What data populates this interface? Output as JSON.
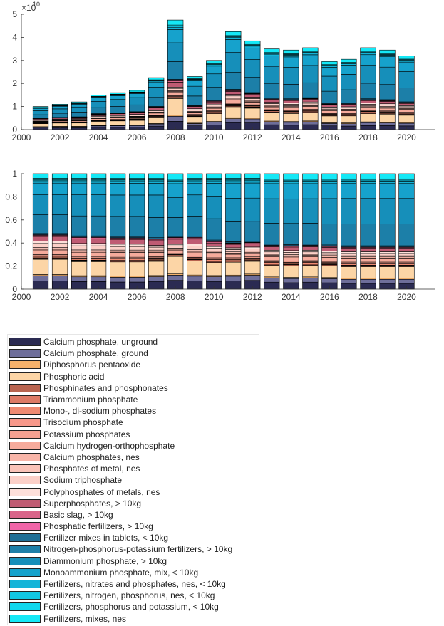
{
  "chart_data": [
    {
      "type": "stacked-bar",
      "panel": "top",
      "title": "",
      "xlabel": "",
      "ylabel": "",
      "y_multiplier_label": "×10",
      "y_multiplier_exponent": "10",
      "ylim": [
        0,
        5
      ],
      "yticks": [
        0,
        1,
        2,
        3,
        4,
        5
      ],
      "xlim": [
        2000,
        2021.5
      ],
      "xticks": [
        2000,
        2002,
        2004,
        2006,
        2008,
        2010,
        2012,
        2014,
        2016,
        2018,
        2020
      ],
      "grid": false
    },
    {
      "type": "stacked-bar",
      "panel": "bottom",
      "title": "",
      "xlabel": "",
      "ylabel": "",
      "ylim": [
        0,
        1
      ],
      "yticks": [
        0,
        0.2,
        0.4,
        0.6,
        0.8,
        1
      ],
      "xlim": [
        2000,
        2021.5
      ],
      "xticks": [
        2000,
        2002,
        2004,
        2006,
        2008,
        2010,
        2012,
        2014,
        2016,
        2018,
        2020
      ],
      "grid": false
    }
  ],
  "years": [
    2001,
    2002,
    2003,
    2004,
    2005,
    2006,
    2007,
    2008,
    2009,
    2010,
    2011,
    2012,
    2013,
    2014,
    2015,
    2016,
    2017,
    2018,
    2019,
    2020
  ],
  "totals_x1e10": [
    1.0,
    1.1,
    1.2,
    1.5,
    1.6,
    1.7,
    2.25,
    4.75,
    2.3,
    3.0,
    4.25,
    3.85,
    3.5,
    3.45,
    3.55,
    2.95,
    3.05,
    3.55,
    3.45,
    3.2
  ],
  "series": [
    {
      "name": "Calcium phosphate, unground",
      "color": "#2b2b52",
      "shares": [
        0.07,
        0.07,
        0.065,
        0.065,
        0.06,
        0.06,
        0.065,
        0.075,
        0.07,
        0.065,
        0.07,
        0.075,
        0.06,
        0.055,
        0.06,
        0.055,
        0.05,
        0.05,
        0.05,
        0.05
      ]
    },
    {
      "name": "Calcium phosphate, ground",
      "color": "#6e6e9a",
      "shares": [
        0.045,
        0.045,
        0.04,
        0.04,
        0.04,
        0.04,
        0.04,
        0.045,
        0.04,
        0.04,
        0.04,
        0.045,
        0.035,
        0.035,
        0.035,
        0.035,
        0.035,
        0.035,
        0.035,
        0.035
      ]
    },
    {
      "name": "Diphosphorus pentaoxide",
      "color": "#f6b26b",
      "shares": [
        0.01,
        0.01,
        0.01,
        0.01,
        0.01,
        0.01,
        0.01,
        0.01,
        0.01,
        0.01,
        0.01,
        0.01,
        0.01,
        0.01,
        0.01,
        0.01,
        0.01,
        0.01,
        0.01,
        0.01
      ]
    },
    {
      "name": "Phosphoric acid",
      "color": "#fcd5a6",
      "shares": [
        0.13,
        0.13,
        0.12,
        0.12,
        0.12,
        0.12,
        0.12,
        0.15,
        0.12,
        0.11,
        0.11,
        0.11,
        0.1,
        0.1,
        0.1,
        0.1,
        0.1,
        0.1,
        0.1,
        0.1
      ]
    },
    {
      "name": "Phosphinates and phosphonates",
      "color": "#b86450",
      "shares": [
        0.01,
        0.01,
        0.01,
        0.01,
        0.01,
        0.01,
        0.01,
        0.005,
        0.01,
        0.01,
        0.01,
        0.01,
        0.01,
        0.01,
        0.01,
        0.01,
        0.01,
        0.01,
        0.01,
        0.01
      ]
    },
    {
      "name": "Triammonium phosphate",
      "color": "#dd7a66",
      "shares": [
        0.003,
        0.003,
        0.003,
        0.003,
        0.003,
        0.003,
        0.003,
        0.002,
        0.003,
        0.003,
        0.003,
        0.003,
        0.003,
        0.003,
        0.003,
        0.003,
        0.003,
        0.003,
        0.003,
        0.003
      ]
    },
    {
      "name": "Mono-, di-sodium phosphates",
      "color": "#ef8a72",
      "shares": [
        0.012,
        0.012,
        0.012,
        0.012,
        0.012,
        0.012,
        0.012,
        0.008,
        0.012,
        0.012,
        0.01,
        0.01,
        0.012,
        0.012,
        0.012,
        0.012,
        0.012,
        0.012,
        0.012,
        0.012
      ]
    },
    {
      "name": "Trisodium phosphate",
      "color": "#f7988a",
      "shares": [
        0.005,
        0.005,
        0.005,
        0.005,
        0.005,
        0.005,
        0.005,
        0.003,
        0.005,
        0.005,
        0.005,
        0.005,
        0.005,
        0.005,
        0.005,
        0.005,
        0.005,
        0.005,
        0.005,
        0.005
      ]
    },
    {
      "name": "Potassium phosphates",
      "color": "#f4a090",
      "shares": [
        0.01,
        0.01,
        0.01,
        0.01,
        0.01,
        0.01,
        0.01,
        0.007,
        0.01,
        0.01,
        0.01,
        0.01,
        0.01,
        0.01,
        0.01,
        0.01,
        0.01,
        0.01,
        0.01,
        0.01
      ]
    },
    {
      "name": "Calcium hydrogen-orthophosphate",
      "color": "#f6ab9c",
      "shares": [
        0.04,
        0.04,
        0.04,
        0.04,
        0.04,
        0.04,
        0.035,
        0.03,
        0.035,
        0.035,
        0.03,
        0.03,
        0.035,
        0.035,
        0.035,
        0.035,
        0.035,
        0.035,
        0.035,
        0.035
      ]
    },
    {
      "name": "Calcium phosphates, nes",
      "color": "#f8b5a8",
      "shares": [
        0.01,
        0.01,
        0.01,
        0.01,
        0.01,
        0.01,
        0.01,
        0.008,
        0.01,
        0.01,
        0.01,
        0.01,
        0.01,
        0.01,
        0.01,
        0.01,
        0.01,
        0.01,
        0.01,
        0.01
      ]
    },
    {
      "name": "Phosphates of metal, nes",
      "color": "#fac3b8",
      "shares": [
        0.01,
        0.01,
        0.01,
        0.01,
        0.01,
        0.01,
        0.01,
        0.008,
        0.01,
        0.01,
        0.01,
        0.01,
        0.01,
        0.01,
        0.01,
        0.01,
        0.01,
        0.01,
        0.01,
        0.01
      ]
    },
    {
      "name": "Sodium triphosphate",
      "color": "#fcd0c8",
      "shares": [
        0.035,
        0.035,
        0.035,
        0.035,
        0.03,
        0.03,
        0.025,
        0.02,
        0.03,
        0.025,
        0.02,
        0.02,
        0.02,
        0.02,
        0.02,
        0.02,
        0.02,
        0.02,
        0.02,
        0.02
      ]
    },
    {
      "name": "Polyphosphates of metals, nes",
      "color": "#fde0da",
      "shares": [
        0.02,
        0.02,
        0.02,
        0.02,
        0.02,
        0.02,
        0.015,
        0.012,
        0.02,
        0.015,
        0.015,
        0.015,
        0.015,
        0.015,
        0.015,
        0.015,
        0.015,
        0.015,
        0.015,
        0.015
      ]
    },
    {
      "name": "Superphosphates, > 10kg",
      "color": "#bf5b73",
      "shares": [
        0.04,
        0.04,
        0.04,
        0.04,
        0.04,
        0.04,
        0.04,
        0.045,
        0.04,
        0.03,
        0.03,
        0.03,
        0.03,
        0.03,
        0.03,
        0.03,
        0.03,
        0.03,
        0.03,
        0.03
      ]
    },
    {
      "name": "Basic slag, > 10kg",
      "color": "#d9658a",
      "shares": [
        0.01,
        0.01,
        0.01,
        0.01,
        0.01,
        0.01,
        0.01,
        0.012,
        0.01,
        0.01,
        0.008,
        0.008,
        0.008,
        0.008,
        0.008,
        0.008,
        0.008,
        0.008,
        0.008,
        0.008
      ]
    },
    {
      "name": "Phosphatic fertilizers, > 10kg",
      "color": "#f065a8",
      "shares": [
        0.005,
        0.005,
        0.005,
        0.005,
        0.005,
        0.005,
        0.005,
        0.005,
        0.005,
        0.005,
        0.004,
        0.004,
        0.004,
        0.004,
        0.004,
        0.004,
        0.004,
        0.004,
        0.004,
        0.004
      ]
    },
    {
      "name": "Fertilizer mixes in tablets, < 10kg",
      "color": "#1f6f96",
      "shares": [
        0.01,
        0.01,
        0.01,
        0.01,
        0.01,
        0.01,
        0.01,
        0.008,
        0.01,
        0.01,
        0.01,
        0.01,
        0.01,
        0.01,
        0.01,
        0.01,
        0.01,
        0.01,
        0.01,
        0.01
      ]
    },
    {
      "name": "Nitrogen-phosphorus-potassium fertilizers, > 10kg",
      "color": "#1c7fa8",
      "shares": [
        0.16,
        0.16,
        0.17,
        0.17,
        0.17,
        0.17,
        0.17,
        0.16,
        0.17,
        0.18,
        0.17,
        0.17,
        0.18,
        0.18,
        0.18,
        0.18,
        0.19,
        0.19,
        0.19,
        0.19
      ]
    },
    {
      "name": "Diammonium phosphate, > 10kg",
      "color": "#168fba",
      "shares": [
        0.17,
        0.17,
        0.18,
        0.18,
        0.18,
        0.18,
        0.19,
        0.17,
        0.18,
        0.19,
        0.2,
        0.2,
        0.21,
        0.21,
        0.21,
        0.22,
        0.22,
        0.22,
        0.22,
        0.22
      ]
    },
    {
      "name": "Monoammonium phosphate, mix, < 10kg",
      "color": "#16a2cc",
      "shares": [
        0.1,
        0.1,
        0.1,
        0.1,
        0.1,
        0.1,
        0.1,
        0.12,
        0.1,
        0.11,
        0.13,
        0.13,
        0.13,
        0.13,
        0.13,
        0.13,
        0.13,
        0.13,
        0.13,
        0.13
      ]
    },
    {
      "name": "Fertilizers, nitrates and phosphates, nes, < 10kg",
      "color": "#14b4d8",
      "shares": [
        0.02,
        0.02,
        0.02,
        0.02,
        0.02,
        0.02,
        0.02,
        0.02,
        0.02,
        0.02,
        0.02,
        0.02,
        0.02,
        0.02,
        0.02,
        0.02,
        0.02,
        0.02,
        0.02,
        0.02
      ]
    },
    {
      "name": "Fertilizers, nitrogen, phosphorus, nes, < 10kg",
      "color": "#12c6e2",
      "shares": [
        0.01,
        0.01,
        0.01,
        0.01,
        0.01,
        0.01,
        0.01,
        0.01,
        0.01,
        0.01,
        0.01,
        0.01,
        0.01,
        0.01,
        0.01,
        0.01,
        0.01,
        0.01,
        0.01,
        0.01
      ]
    },
    {
      "name": "Fertilizers, phosphorus and potassium, < 10kg",
      "color": "#10d8ee",
      "shares": [
        0.01,
        0.01,
        0.01,
        0.01,
        0.01,
        0.01,
        0.01,
        0.01,
        0.01,
        0.01,
        0.01,
        0.01,
        0.01,
        0.01,
        0.01,
        0.01,
        0.01,
        0.01,
        0.01,
        0.01
      ]
    },
    {
      "name": "Fertilizers, mixes, nes",
      "color": "#15e8f6",
      "shares": [
        0.04,
        0.04,
        0.04,
        0.04,
        0.04,
        0.04,
        0.04,
        0.045,
        0.04,
        0.04,
        0.04,
        0.04,
        0.045,
        0.045,
        0.045,
        0.045,
        0.045,
        0.045,
        0.045,
        0.045
      ]
    }
  ]
}
